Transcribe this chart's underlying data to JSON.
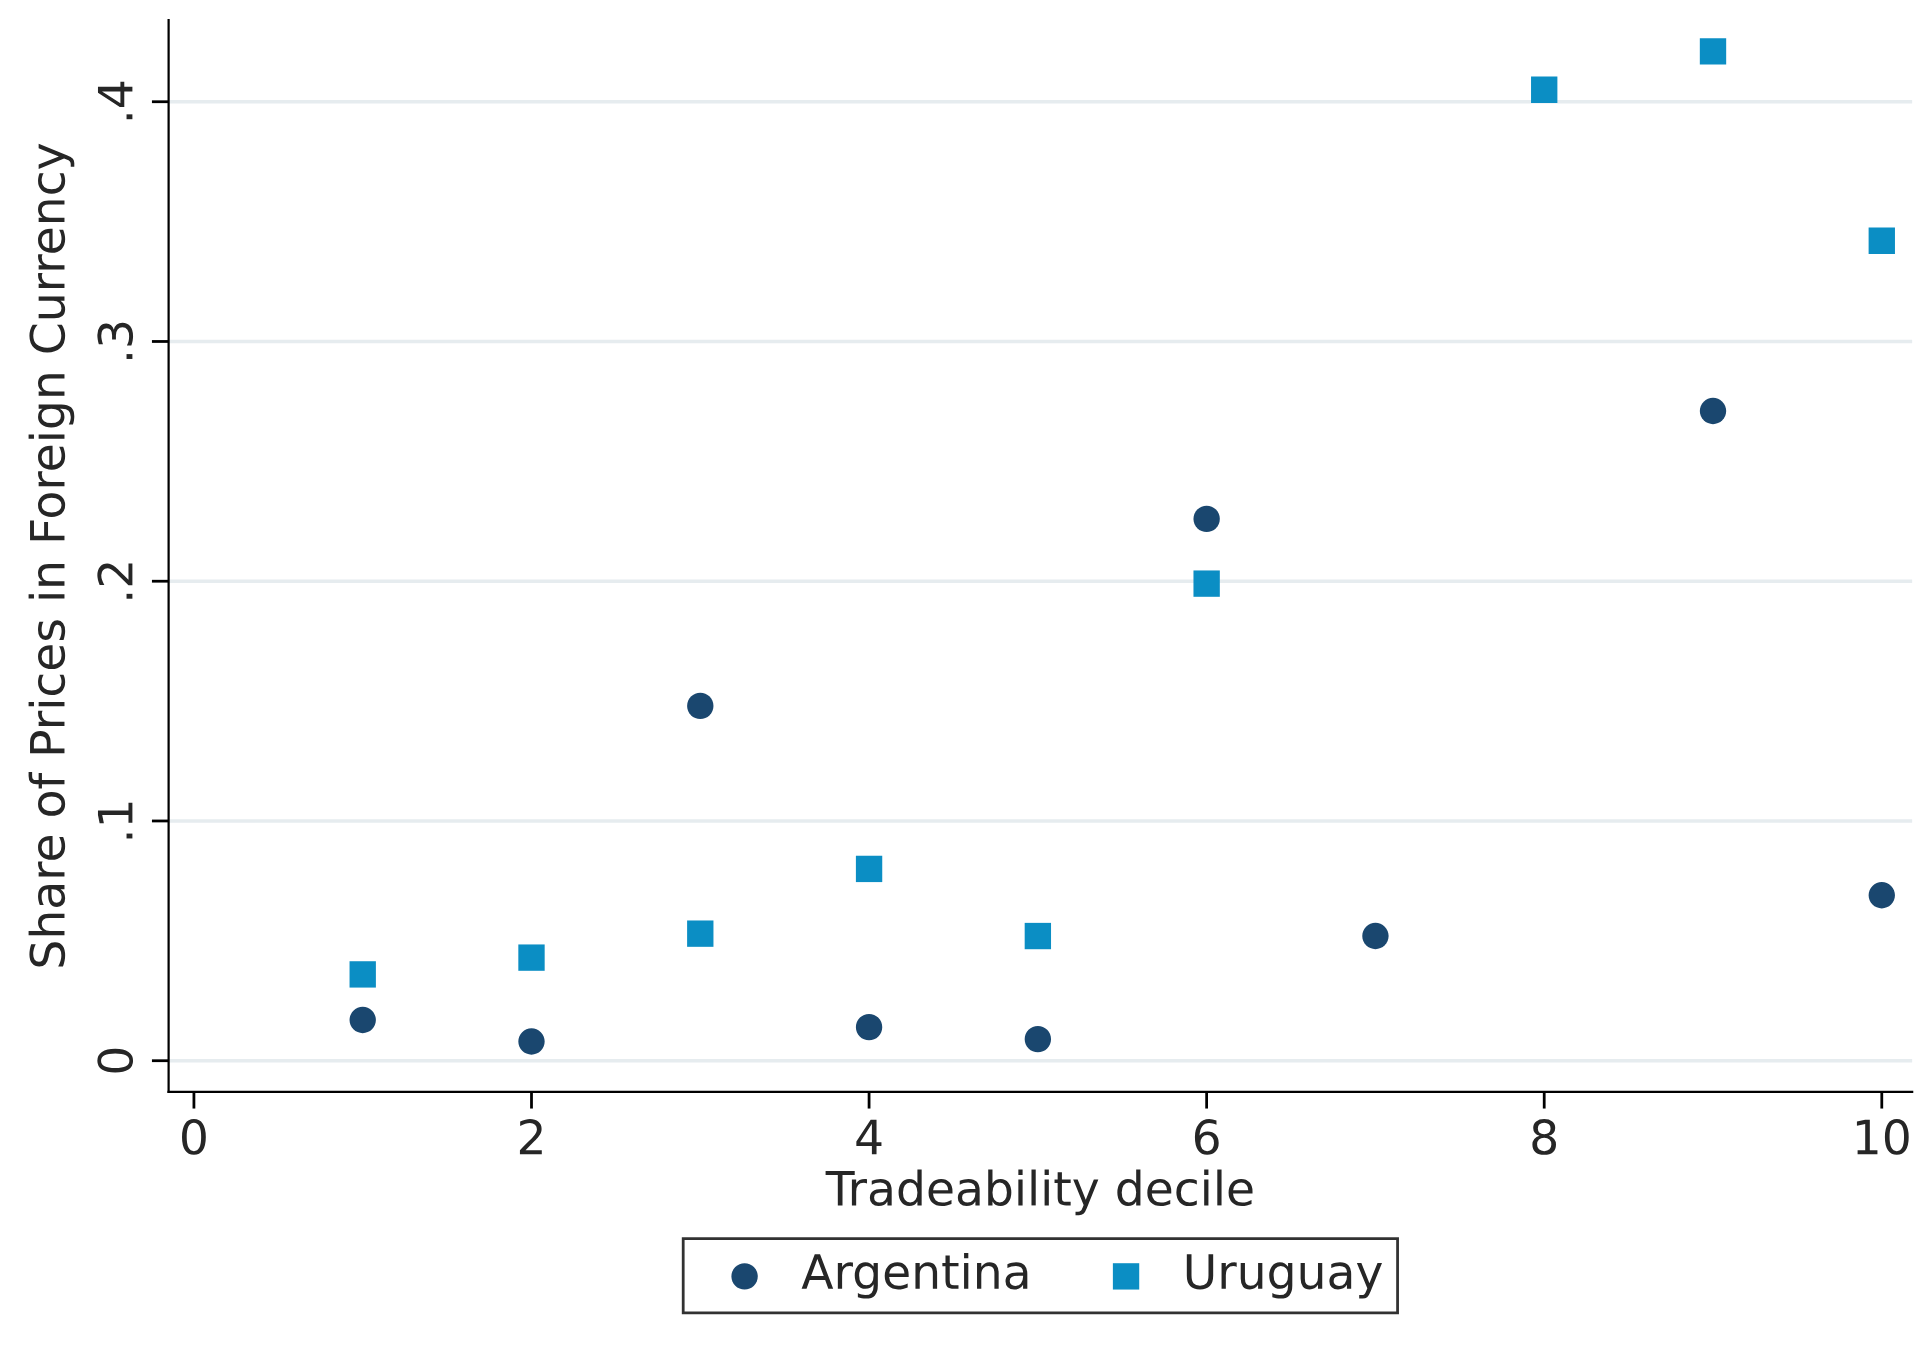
{
  "chart_data": {
    "type": "scatter",
    "xlabel": "Tradeability decile",
    "ylabel": "Share of Prices in Foreign Currency",
    "series": [
      {
        "name": "Argentina",
        "color": "#1a476f",
        "marker": "circle",
        "x": [
          1,
          2,
          3,
          4,
          5,
          6,
          7,
          9,
          10
        ],
        "values": [
          0.017,
          0.008,
          0.148,
          0.014,
          0.009,
          0.226,
          0.052,
          0.271,
          0.069
        ]
      },
      {
        "name": "Uruguay",
        "color": "#0b8ec4",
        "marker": "square",
        "x": [
          1,
          2,
          3,
          4,
          5,
          6,
          8,
          9,
          10
        ],
        "values": [
          0.036,
          0.043,
          0.053,
          0.08,
          0.052,
          0.199,
          0.405,
          0.421,
          0.342
        ]
      }
    ],
    "xlim": [
      -0.15,
      10.18
    ],
    "xticks": [
      0,
      2,
      4,
      6,
      8,
      10
    ],
    "ylim": [
      -0.013,
      0.434
    ],
    "yticks": [
      {
        "value": 0,
        "label": "0"
      },
      {
        "value": 0.1,
        "label": ".1"
      },
      {
        "value": 0.2,
        "label": ".2"
      },
      {
        "value": 0.3,
        "label": ".3"
      },
      {
        "value": 0.4,
        "label": ".4"
      }
    ],
    "grid": "y",
    "legend": "bottom"
  }
}
